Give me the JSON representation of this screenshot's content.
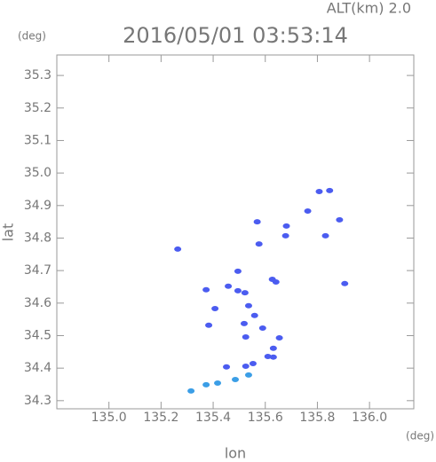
{
  "chart_data": {
    "type": "scatter",
    "title": "2016/05/01 03:53:14",
    "subtitle": "ALT(km) 2.0",
    "y_unit": "(deg)",
    "x_unit": "(deg)",
    "xlabel": "lon",
    "ylabel": "lat",
    "xlim": [
      134.8,
      136.17
    ],
    "ylim": [
      34.275,
      35.363
    ],
    "xticks": [
      {
        "value": 135.0,
        "label": "135.0"
      },
      135.2,
      135.4,
      135.6,
      135.8,
      {
        "value": 136.0,
        "label": "136.0"
      }
    ],
    "yticks": [
      34.3,
      34.4,
      34.5,
      34.6,
      34.7,
      34.8,
      34.9,
      {
        "value": 35.0,
        "label": "35.0"
      },
      35.1,
      35.2,
      35.3
    ],
    "series": [
      {
        "color": "#4b5cf0",
        "x": [
          135.264,
          135.807,
          135.847,
          135.763,
          135.885,
          135.831,
          135.905,
          135.681,
          135.678,
          135.576,
          135.569,
          135.495,
          135.627,
          135.641,
          135.373,
          135.458,
          135.495,
          135.522,
          135.407,
          135.536,
          135.559,
          135.519,
          135.59,
          135.383,
          135.525,
          135.654,
          135.631,
          135.61,
          135.631,
          135.553,
          135.525,
          135.451
        ],
        "y": [
          34.766,
          34.943,
          34.946,
          34.883,
          34.856,
          34.807,
          34.66,
          34.837,
          34.807,
          34.782,
          34.85,
          34.698,
          34.673,
          34.665,
          34.641,
          34.652,
          34.638,
          34.632,
          34.583,
          34.592,
          34.562,
          34.537,
          34.523,
          34.532,
          34.496,
          34.493,
          34.461,
          34.436,
          34.434,
          34.414,
          34.406,
          34.404
        ]
      },
      {
        "color": "#3b9ee6",
        "x": [
          135.536,
          135.485,
          135.417,
          135.373,
          135.315
        ],
        "y": [
          34.379,
          34.365,
          34.354,
          34.349,
          34.33
        ]
      }
    ]
  }
}
